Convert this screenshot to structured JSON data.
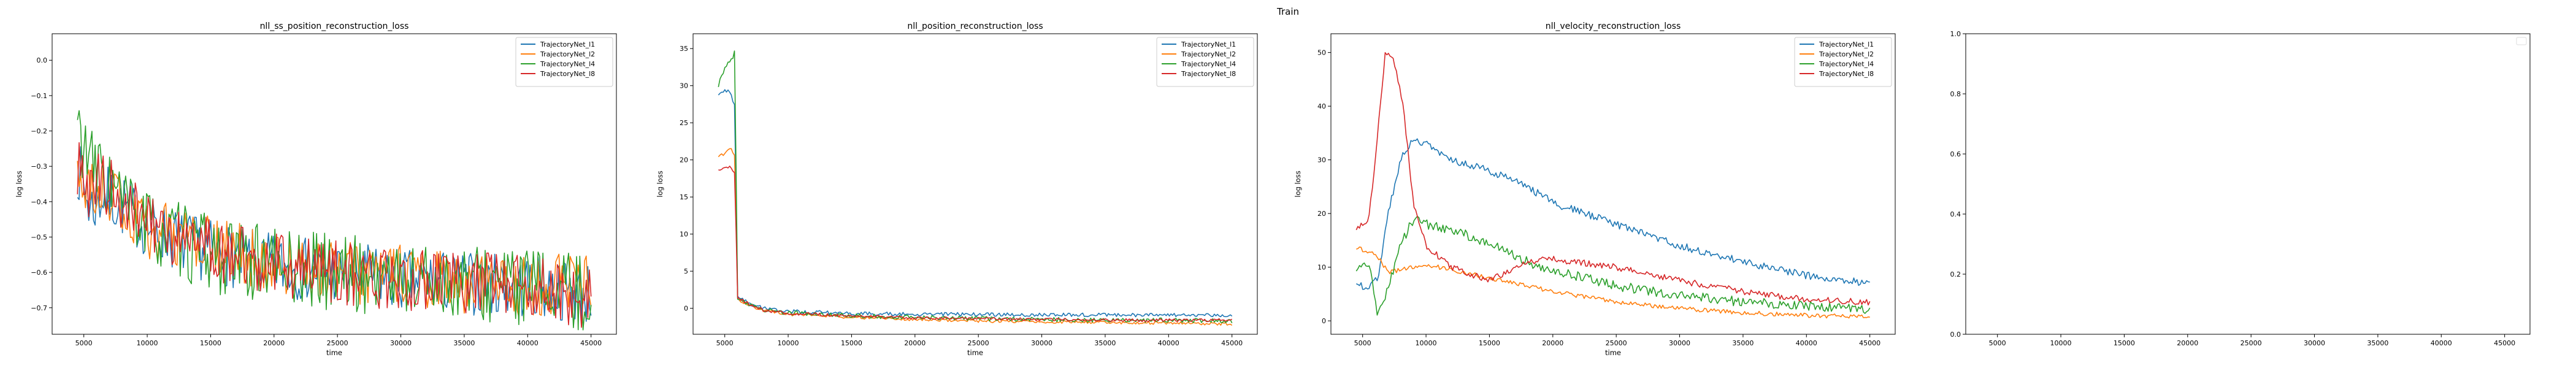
{
  "figure": {
    "suptitle": "Train"
  },
  "chart_data": [
    {
      "type": "line",
      "title": "nll_ss_position_reconstruction_loss",
      "xlabel": "time",
      "ylabel": "log loss",
      "xlim": [
        2500,
        47000
      ],
      "ylim": [
        -0.775,
        0.075
      ],
      "xticks": [
        5000,
        10000,
        15000,
        20000,
        25000,
        30000,
        35000,
        40000,
        45000
      ],
      "yticks": [
        -0.7,
        -0.6,
        -0.5,
        -0.4,
        -0.3,
        -0.2,
        -0.1,
        0.0
      ],
      "ytick_labels": [
        "−0.7",
        "−0.6",
        "−0.5",
        "−0.4",
        "−0.3",
        "−0.2",
        "−0.1",
        "0.0"
      ],
      "legend": "upper right",
      "noise": 1,
      "series": [
        {
          "name": "TrajectoryNet_l1",
          "color": "#1f77b4",
          "x": [
            4500,
            5500,
            6500,
            8000,
            10000,
            13000,
            16000,
            20000,
            25000,
            30000,
            35000,
            40000,
            45000
          ],
          "y": [
            -0.3,
            -0.42,
            -0.38,
            -0.41,
            -0.47,
            -0.52,
            -0.55,
            -0.58,
            -0.6,
            -0.62,
            -0.63,
            -0.64,
            -0.66
          ],
          "amp": 0.09
        },
        {
          "name": "TrajectoryNet_l2",
          "color": "#ff7f0e",
          "x": [
            4500,
            5500,
            6500,
            8000,
            10000,
            13000,
            16000,
            20000,
            25000,
            30000,
            35000,
            40000,
            45000
          ],
          "y": [
            -0.33,
            -0.38,
            -0.36,
            -0.42,
            -0.47,
            -0.51,
            -0.54,
            -0.57,
            -0.6,
            -0.61,
            -0.63,
            -0.64,
            -0.62
          ],
          "amp": 0.09
        },
        {
          "name": "TrajectoryNet_l4",
          "color": "#2ca02c",
          "x": [
            4500,
            5500,
            6500,
            8000,
            10000,
            13000,
            16000,
            20000,
            25000,
            30000,
            35000,
            40000,
            45000
          ],
          "y": [
            -0.18,
            -0.3,
            -0.32,
            -0.4,
            -0.47,
            -0.52,
            -0.56,
            -0.58,
            -0.6,
            -0.62,
            -0.63,
            -0.64,
            -0.66
          ],
          "amp": 0.11
        },
        {
          "name": "TrajectoryNet_l8",
          "color": "#d62728",
          "x": [
            4500,
            5500,
            6500,
            8000,
            10000,
            13000,
            16000,
            20000,
            25000,
            30000,
            35000,
            40000,
            45000
          ],
          "y": [
            -0.3,
            -0.36,
            -0.34,
            -0.41,
            -0.46,
            -0.51,
            -0.55,
            -0.58,
            -0.6,
            -0.62,
            -0.63,
            -0.64,
            -0.67
          ],
          "amp": 0.09
        }
      ]
    },
    {
      "type": "line",
      "title": "nll_position_reconstruction_loss",
      "xlabel": "time",
      "ylabel": "log loss",
      "xlim": [
        2500,
        47000
      ],
      "ylim": [
        -3.5,
        37
      ],
      "xticks": [
        5000,
        10000,
        15000,
        20000,
        25000,
        30000,
        35000,
        40000,
        45000
      ],
      "yticks": [
        0,
        5,
        10,
        15,
        20,
        25,
        30,
        35
      ],
      "ytick_labels": [
        "0",
        "5",
        "10",
        "15",
        "20",
        "25",
        "30",
        "35"
      ],
      "legend": "upper right",
      "noise": 2,
      "series": [
        {
          "name": "TrajectoryNet_l1",
          "color": "#1f77b4",
          "x": [
            4500,
            5000,
            5500,
            5800,
            6000,
            7000,
            8000,
            10000,
            15000,
            20000,
            25000,
            30000,
            35000,
            40000,
            45000
          ],
          "y": [
            28.5,
            29.5,
            29.0,
            27.0,
            1.5,
            0.6,
            0.0,
            -0.4,
            -0.7,
            -0.8,
            -0.8,
            -0.9,
            -0.9,
            -0.9,
            -0.9
          ],
          "amp": 0.25
        },
        {
          "name": "TrajectoryNet_l2",
          "color": "#ff7f0e",
          "x": [
            4500,
            5000,
            5500,
            5800,
            6000,
            7000,
            8000,
            10000,
            15000,
            20000,
            25000,
            30000,
            35000,
            40000,
            45000
          ],
          "y": [
            20.5,
            20.8,
            21.5,
            20.5,
            1.2,
            0.4,
            -0.3,
            -0.8,
            -1.2,
            -1.5,
            -1.7,
            -1.8,
            -1.9,
            -2.0,
            -2.1
          ],
          "amp": 0.2
        },
        {
          "name": "TrajectoryNet_l4",
          "color": "#2ca02c",
          "x": [
            4500,
            5000,
            5500,
            5800,
            6000,
            7000,
            8000,
            10000,
            15000,
            20000,
            25000,
            30000,
            35000,
            40000,
            45000
          ],
          "y": [
            30.0,
            32.5,
            33.5,
            34.5,
            1.5,
            0.4,
            -0.2,
            -0.6,
            -1.0,
            -1.2,
            -1.4,
            -1.5,
            -1.6,
            -1.6,
            -1.7
          ],
          "amp": 0.3
        },
        {
          "name": "TrajectoryNet_l8",
          "color": "#d62728",
          "x": [
            4500,
            5000,
            5500,
            5800,
            6000,
            7000,
            8000,
            10000,
            15000,
            20000,
            25000,
            30000,
            35000,
            40000,
            45000
          ],
          "y": [
            18.5,
            19.0,
            19.0,
            18.0,
            1.4,
            0.5,
            -0.2,
            -0.7,
            -1.0,
            -1.3,
            -1.4,
            -1.5,
            -1.6,
            -1.6,
            -1.6
          ],
          "amp": 0.2
        }
      ]
    },
    {
      "type": "line",
      "title": "nll_velocity_reconstruction_loss",
      "xlabel": "time",
      "ylabel": "log loss",
      "xlim": [
        2500,
        47000
      ],
      "ylim": [
        -2.5,
        53.5
      ],
      "xticks": [
        5000,
        10000,
        15000,
        20000,
        25000,
        30000,
        35000,
        40000,
        45000
      ],
      "yticks": [
        0,
        10,
        20,
        30,
        40,
        50
      ],
      "ytick_labels": [
        "0",
        "10",
        "20",
        "30",
        "40",
        "50"
      ],
      "legend": "upper right",
      "noise": 3,
      "series": [
        {
          "name": "TrajectoryNet_l1",
          "color": "#1f77b4",
          "x": [
            4500,
            5500,
            6200,
            7000,
            8000,
            9000,
            10000,
            12000,
            15000,
            18000,
            20000,
            25000,
            30000,
            35000,
            40000,
            45000
          ],
          "y": [
            7.0,
            6.0,
            8.0,
            20.0,
            30.0,
            34.0,
            33.0,
            30.0,
            28.0,
            25.0,
            22.0,
            18.0,
            14.0,
            11.0,
            8.5,
            7.0
          ],
          "amp": 0.7
        },
        {
          "name": "TrajectoryNet_l2",
          "color": "#ff7f0e",
          "x": [
            4500,
            5500,
            6200,
            7000,
            8000,
            9000,
            10000,
            12000,
            15000,
            18000,
            20000,
            25000,
            30000,
            35000,
            40000,
            45000
          ],
          "y": [
            13.5,
            13.0,
            12.0,
            9.0,
            9.5,
            10.0,
            10.5,
            9.5,
            8.0,
            6.5,
            5.5,
            3.5,
            2.3,
            1.5,
            1.0,
            0.8
          ],
          "amp": 0.4
        },
        {
          "name": "TrajectoryNet_l4",
          "color": "#2ca02c",
          "x": [
            4500,
            5500,
            6200,
            7000,
            8000,
            9000,
            10000,
            12000,
            15000,
            18000,
            20000,
            25000,
            30000,
            35000,
            40000,
            45000
          ],
          "y": [
            9.0,
            11.0,
            1.0,
            6.0,
            14.0,
            19.0,
            18.0,
            17.0,
            14.5,
            11.0,
            9.5,
            6.5,
            4.8,
            3.5,
            2.8,
            2.2
          ],
          "amp": 0.9
        },
        {
          "name": "TrajectoryNet_l8",
          "color": "#d62728",
          "x": [
            4500,
            5500,
            6200,
            6800,
            7500,
            8200,
            9000,
            10000,
            12000,
            15000,
            18000,
            20000,
            25000,
            30000,
            35000,
            40000,
            45000
          ],
          "y": [
            17.0,
            19.0,
            35.0,
            50.5,
            48.0,
            40.0,
            22.0,
            14.0,
            10.0,
            7.5,
            11.0,
            11.5,
            10.0,
            7.5,
            5.5,
            4.0,
            3.5
          ],
          "amp": 0.6
        }
      ]
    },
    {
      "type": "line",
      "title": "",
      "xlabel": "",
      "ylabel": "",
      "xlim": [
        2500,
        47000
      ],
      "ylim": [
        0,
        1
      ],
      "xticks": [
        5000,
        10000,
        15000,
        20000,
        25000,
        30000,
        35000,
        40000,
        45000
      ],
      "yticks": [
        0.0,
        0.2,
        0.4,
        0.6,
        0.8,
        1.0
      ],
      "ytick_labels": [
        "0.0",
        "0.2",
        "0.4",
        "0.6",
        "0.8",
        "1.0"
      ],
      "legend": "upper right (empty)",
      "series": []
    }
  ]
}
